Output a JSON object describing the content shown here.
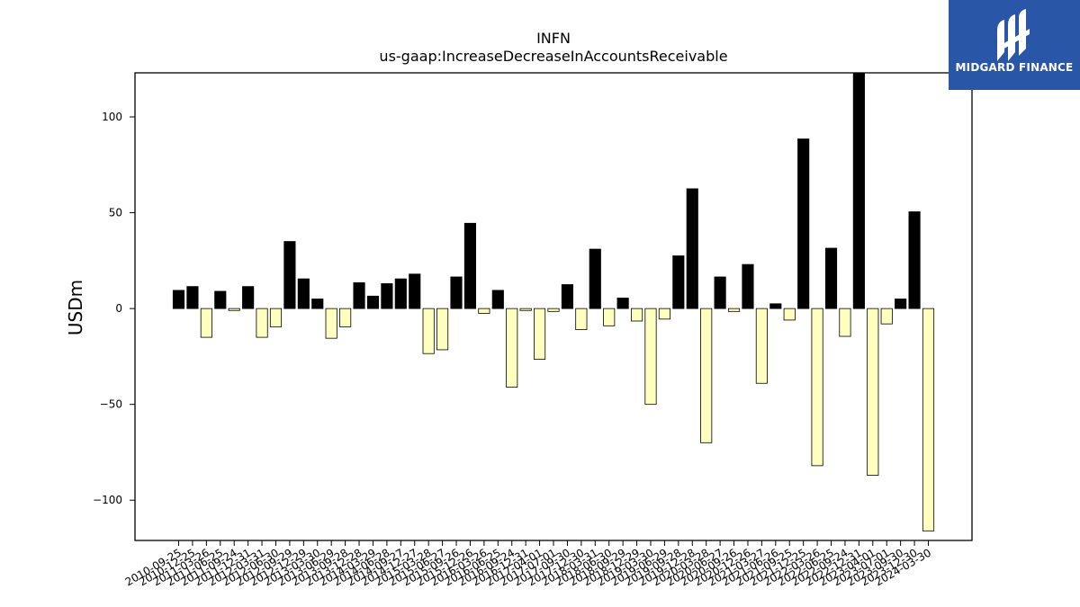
{
  "brand": {
    "name": "MIDGARD FINANCE",
    "bg_color": "#2a56a8"
  },
  "colors": {
    "positive_bar": "#000000",
    "negative_bar": "#ffffc0",
    "bar_edge": "#000000"
  },
  "chart_data": {
    "type": "bar",
    "title": "INFN",
    "subtitle": "us-gaap:IncreaseDecreaseInAccountsReceivable",
    "xlabel": "",
    "ylabel": "USDm",
    "ylim": [
      -121,
      123
    ],
    "yticks": [
      -100,
      -50,
      0,
      50,
      100
    ],
    "ytick_labels": [
      "−100",
      "−50",
      "0",
      "50",
      "100"
    ],
    "grid": false,
    "categories": [
      "2010-09-25",
      "2010-12-25",
      "2011-03-26",
      "2011-06-25",
      "2011-09-24",
      "2011-12-31",
      "2012-03-31",
      "2012-06-30",
      "2012-09-29",
      "2012-12-29",
      "2013-03-30",
      "2013-06-29",
      "2013-09-28",
      "2013-12-28",
      "2014-03-29",
      "2014-06-28",
      "2014-09-27",
      "2014-12-27",
      "2015-03-28",
      "2015-06-27",
      "2015-09-26",
      "2015-12-26",
      "2016-03-26",
      "2016-06-25",
      "2016-09-24",
      "2016-12-31",
      "2017-04-01",
      "2017-07-01",
      "2017-09-30",
      "2017-12-30",
      "2018-03-31",
      "2018-06-30",
      "2018-09-29",
      "2018-12-29",
      "2019-03-30",
      "2019-06-29",
      "2019-09-28",
      "2019-12-28",
      "2020-03-28",
      "2020-06-27",
      "2020-09-26",
      "2020-12-26",
      "2021-03-27",
      "2021-06-26",
      "2021-09-25",
      "2021-12-25",
      "2022-03-26",
      "2022-06-25",
      "2022-09-24",
      "2022-12-31",
      "2023-04-01",
      "2023-07-01",
      "2023-09-30",
      "2023-12-30",
      "2024-03-30"
    ],
    "values": [
      9.5,
      11.5,
      -15,
      9,
      -1,
      11.5,
      -15,
      -9.5,
      35,
      15.5,
      5,
      -15.5,
      -9.5,
      13.5,
      6.5,
      13,
      15.5,
      18,
      -23.5,
      -21.5,
      16.5,
      44.5,
      -2.5,
      9.5,
      -41,
      -1,
      -26.5,
      -1.5,
      12.5,
      -11,
      31,
      -9,
      5.5,
      -6.5,
      -50,
      -5.5,
      27.5,
      62.5,
      -70,
      16.5,
      -1.5,
      23,
      -39,
      2.5,
      -6,
      88.5,
      -82,
      31.5,
      -14.5,
      124,
      -87,
      -8,
      5,
      50.5,
      -116
    ]
  }
}
